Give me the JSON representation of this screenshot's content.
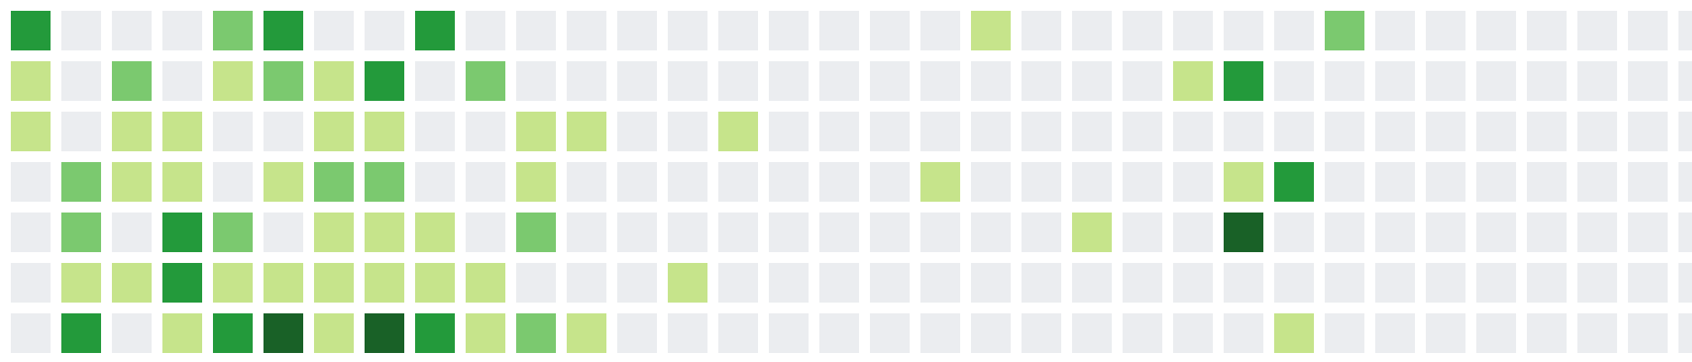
{
  "palette": {
    "0": "#ebedf0",
    "1": "#c6e48b",
    "2": "#7bc96f",
    "3": "#239a3b",
    "4": "#196127"
  },
  "weeks": [
    [
      3,
      1,
      1,
      0,
      0,
      0,
      0
    ],
    [
      0,
      0,
      0,
      2,
      2,
      1,
      3
    ],
    [
      0,
      2,
      1,
      1,
      0,
      1,
      0
    ],
    [
      0,
      0,
      1,
      1,
      3,
      3,
      1
    ],
    [
      2,
      1,
      0,
      0,
      2,
      1,
      3
    ],
    [
      3,
      2,
      0,
      1,
      0,
      1,
      4
    ],
    [
      0,
      1,
      1,
      2,
      1,
      1,
      1
    ],
    [
      0,
      3,
      1,
      2,
      1,
      1,
      4
    ],
    [
      3,
      0,
      0,
      0,
      1,
      1,
      3
    ],
    [
      0,
      2,
      0,
      0,
      0,
      1,
      1
    ],
    [
      0,
      0,
      1,
      1,
      2,
      0,
      2
    ],
    [
      0,
      0,
      1,
      0,
      0,
      0,
      1
    ],
    [
      0,
      0,
      0,
      0,
      0,
      0,
      0
    ],
    [
      0,
      0,
      0,
      0,
      0,
      1,
      0
    ],
    [
      0,
      0,
      1,
      0,
      0,
      0,
      0
    ],
    [
      0,
      0,
      0,
      0,
      0,
      0,
      0
    ],
    [
      0,
      0,
      0,
      0,
      0,
      0,
      0
    ],
    [
      0,
      0,
      0,
      0,
      0,
      0,
      0
    ],
    [
      0,
      0,
      0,
      1,
      0,
      0,
      0
    ],
    [
      1,
      0,
      0,
      0,
      0,
      0,
      0
    ],
    [
      0,
      0,
      0,
      0,
      0,
      0,
      0
    ],
    [
      0,
      0,
      0,
      0,
      1,
      0,
      0
    ],
    [
      0,
      0,
      0,
      0,
      0,
      0,
      0
    ],
    [
      0,
      1,
      0,
      0,
      0,
      0,
      0
    ],
    [
      0,
      3,
      0,
      1,
      4,
      0,
      0
    ],
    [
      0,
      0,
      0,
      3,
      0,
      0,
      1
    ],
    [
      2,
      0,
      0,
      0,
      0,
      0,
      0
    ],
    [
      0,
      0,
      0,
      0,
      0,
      0,
      0
    ],
    [
      0,
      0,
      0,
      0,
      0,
      0,
      0
    ],
    [
      0,
      0,
      0,
      0,
      0,
      0,
      0
    ],
    [
      0,
      0,
      0,
      0,
      0,
      0,
      0
    ],
    [
      0,
      0,
      0,
      0,
      0,
      0,
      0
    ],
    [
      0,
      0,
      0,
      0,
      0,
      0,
      0
    ],
    [
      0,
      0,
      0,
      0,
      0,
      0,
      0
    ]
  ]
}
